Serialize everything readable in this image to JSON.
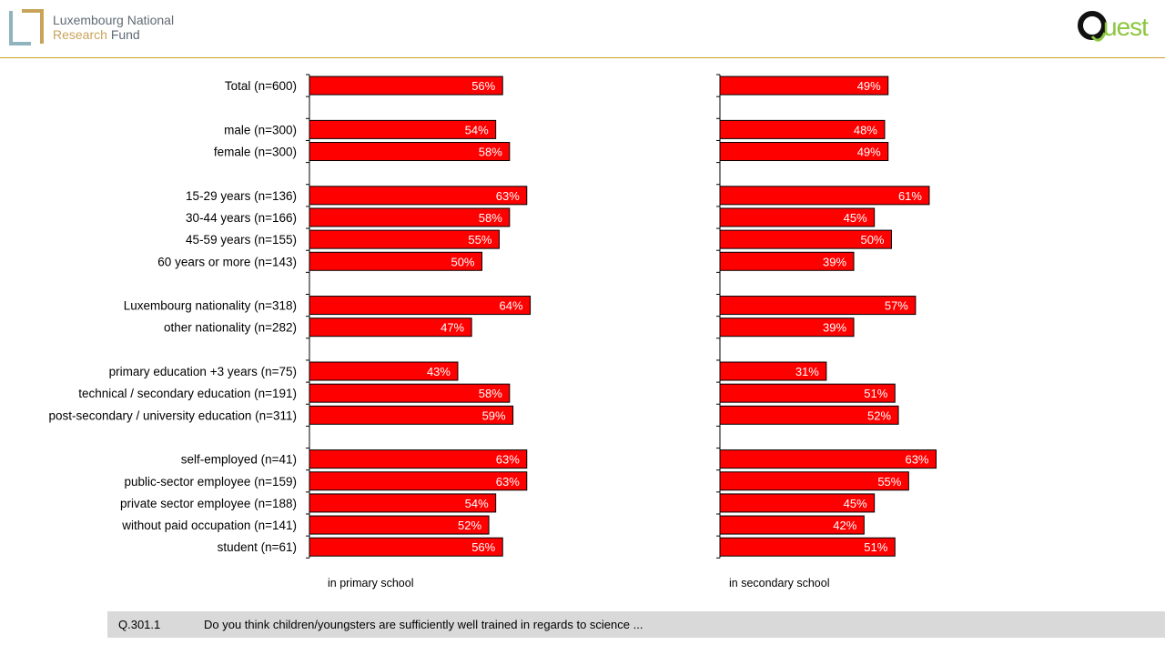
{
  "header": {
    "org_line1": "Luxembourg National",
    "org_research": "Research",
    "org_fund": "Fund",
    "quest": "uest"
  },
  "footer": {
    "question_id": "Q.301.1",
    "question_text": "Do you think children/youngsters are sufficiently well trained in regards to science  ..."
  },
  "colors": {
    "bar": "#ff0000",
    "accent_line": "#c9a227",
    "footer_bg": "#d9d9d9"
  },
  "chart_data": [
    {
      "type": "bar",
      "orientation": "horizontal",
      "title": "",
      "xlabel": "in primary school",
      "ylabel": "",
      "xlim": [
        0,
        100
      ],
      "categories": [
        "Total (n=600)",
        "",
        "male (n=300)",
        "female (n=300)",
        "",
        "15-29 years (n=136)",
        "30-44 years (n=166)",
        "45-59 years (n=155)",
        "60 years or more (n=143)",
        "",
        "Luxembourg nationality (n=318)",
        "other nationality (n=282)",
        "",
        "primary education +3 years (n=75)",
        "technical / secondary education  (n=191)",
        "post-secondary / university education (n=311)",
        "",
        "self-employed (n=41)",
        "public-sector employee (n=159)",
        "private sector employee (n=188)",
        "without paid occupation (n=141)",
        "student (n=61)"
      ],
      "values": [
        56,
        null,
        54,
        58,
        null,
        63,
        58,
        55,
        50,
        null,
        64,
        47,
        null,
        43,
        58,
        59,
        null,
        63,
        63,
        54,
        52,
        56
      ],
      "labels": [
        "56%",
        "",
        "54%",
        "58%",
        "",
        "63%",
        "58%",
        "55%",
        "50%",
        "",
        "64%",
        "47%",
        "",
        "43%",
        "58%",
        "59%",
        "",
        "63%",
        "63%",
        "54%",
        "52%",
        "56%"
      ]
    },
    {
      "type": "bar",
      "orientation": "horizontal",
      "title": "",
      "xlabel": "in secondary school",
      "ylabel": "",
      "xlim": [
        0,
        100
      ],
      "categories": [
        "Total (n=600)",
        "",
        "male (n=300)",
        "female (n=300)",
        "",
        "15-29 years (n=136)",
        "30-44 years (n=166)",
        "45-59 years (n=155)",
        "60 years or more (n=143)",
        "",
        "Luxembourg nationality (n=318)",
        "other nationality (n=282)",
        "",
        "primary education +3 years (n=75)",
        "technical / secondary education  (n=191)",
        "post-secondary / university education (n=311)",
        "",
        "self-employed (n=41)",
        "public-sector employee (n=159)",
        "private sector employee (n=188)",
        "without paid occupation (n=141)",
        "student (n=61)"
      ],
      "values": [
        49,
        null,
        48,
        49,
        null,
        61,
        45,
        50,
        39,
        null,
        57,
        39,
        null,
        31,
        51,
        52,
        null,
        63,
        55,
        45,
        42,
        51
      ],
      "labels": [
        "49%",
        "",
        "48%",
        "49%",
        "",
        "61%",
        "45%",
        "50%",
        "39%",
        "",
        "57%",
        "39%",
        "",
        "31%",
        "51%",
        "52%",
        "",
        "63%",
        "55%",
        "45%",
        "42%",
        "51%"
      ]
    }
  ]
}
